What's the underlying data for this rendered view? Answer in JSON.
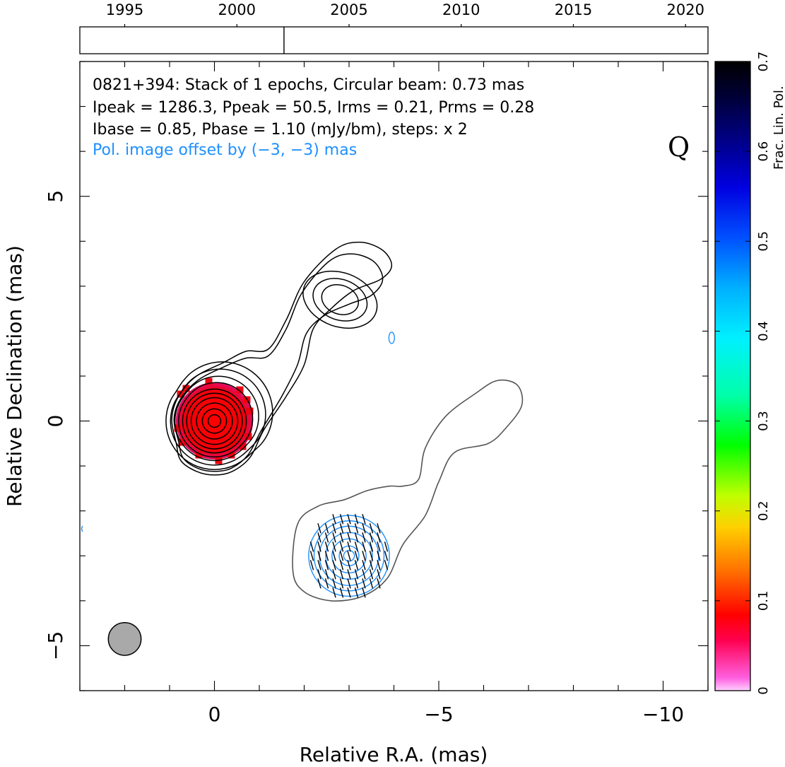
{
  "chart_data": {
    "type": "contour",
    "title_lines": [
      "0821+394: Stack of 1 epochs, Circular beam: 0.73 mas",
      "Ipeak = 1286.3, Ppeak = 50.5, Irms = 0.21, Prms = 0.28",
      "Ibase = 0.85, Pbase = 1.10 (mJy/bm), steps: x 2"
    ],
    "offset_note": "Pol. image offset by (−3, −3) mas",
    "quality_flag": "Q",
    "xlabel": "Relative R.A. (mas)",
    "ylabel": "Relative Declination (mas)",
    "xlim": [
      3,
      -11
    ],
    "ylim": [
      -6,
      8
    ],
    "xticks": [
      {
        "v": 0,
        "label": "0"
      },
      {
        "v": -5,
        "label": "−5"
      },
      {
        "v": -10,
        "label": "−10"
      }
    ],
    "yticks": [
      {
        "v": 5,
        "label": "5"
      },
      {
        "v": 0,
        "label": "0"
      },
      {
        "v": -5,
        "label": "−5"
      }
    ],
    "timeline": {
      "range": [
        1993,
        2021
      ],
      "ticks": [
        "1995",
        "2000",
        "2005",
        "2010",
        "2015",
        "2020"
      ],
      "epochs": [
        2002.1
      ]
    },
    "colorbar": {
      "label": "Frac. Lin. Pol.",
      "range": [
        0,
        0.7
      ],
      "ticks": [
        "0",
        "0.1",
        "0.2",
        "0.3",
        "0.4",
        "0.5",
        "0.6",
        "0.7"
      ]
    },
    "beam_diameter_mas": 0.73,
    "total_intensity": {
      "color": "#000000",
      "core_center": [
        0,
        0
      ],
      "jet_component": [
        -2.8,
        2.7
      ]
    },
    "polarized_intensity": {
      "color": "#1e90ff",
      "offset_center": [
        -3,
        -3
      ],
      "outer_contour_color": "#555555",
      "frac_pol_peak": 0.04
    },
    "colors": {
      "stokes_i": "#000000",
      "pol_contours": "#1e90ff",
      "pol_outline": "#555555",
      "frac_pol_core": "#ff0000",
      "frac_pol_edge": "#e8007a",
      "beam_fill": "#a9a9a9"
    }
  }
}
